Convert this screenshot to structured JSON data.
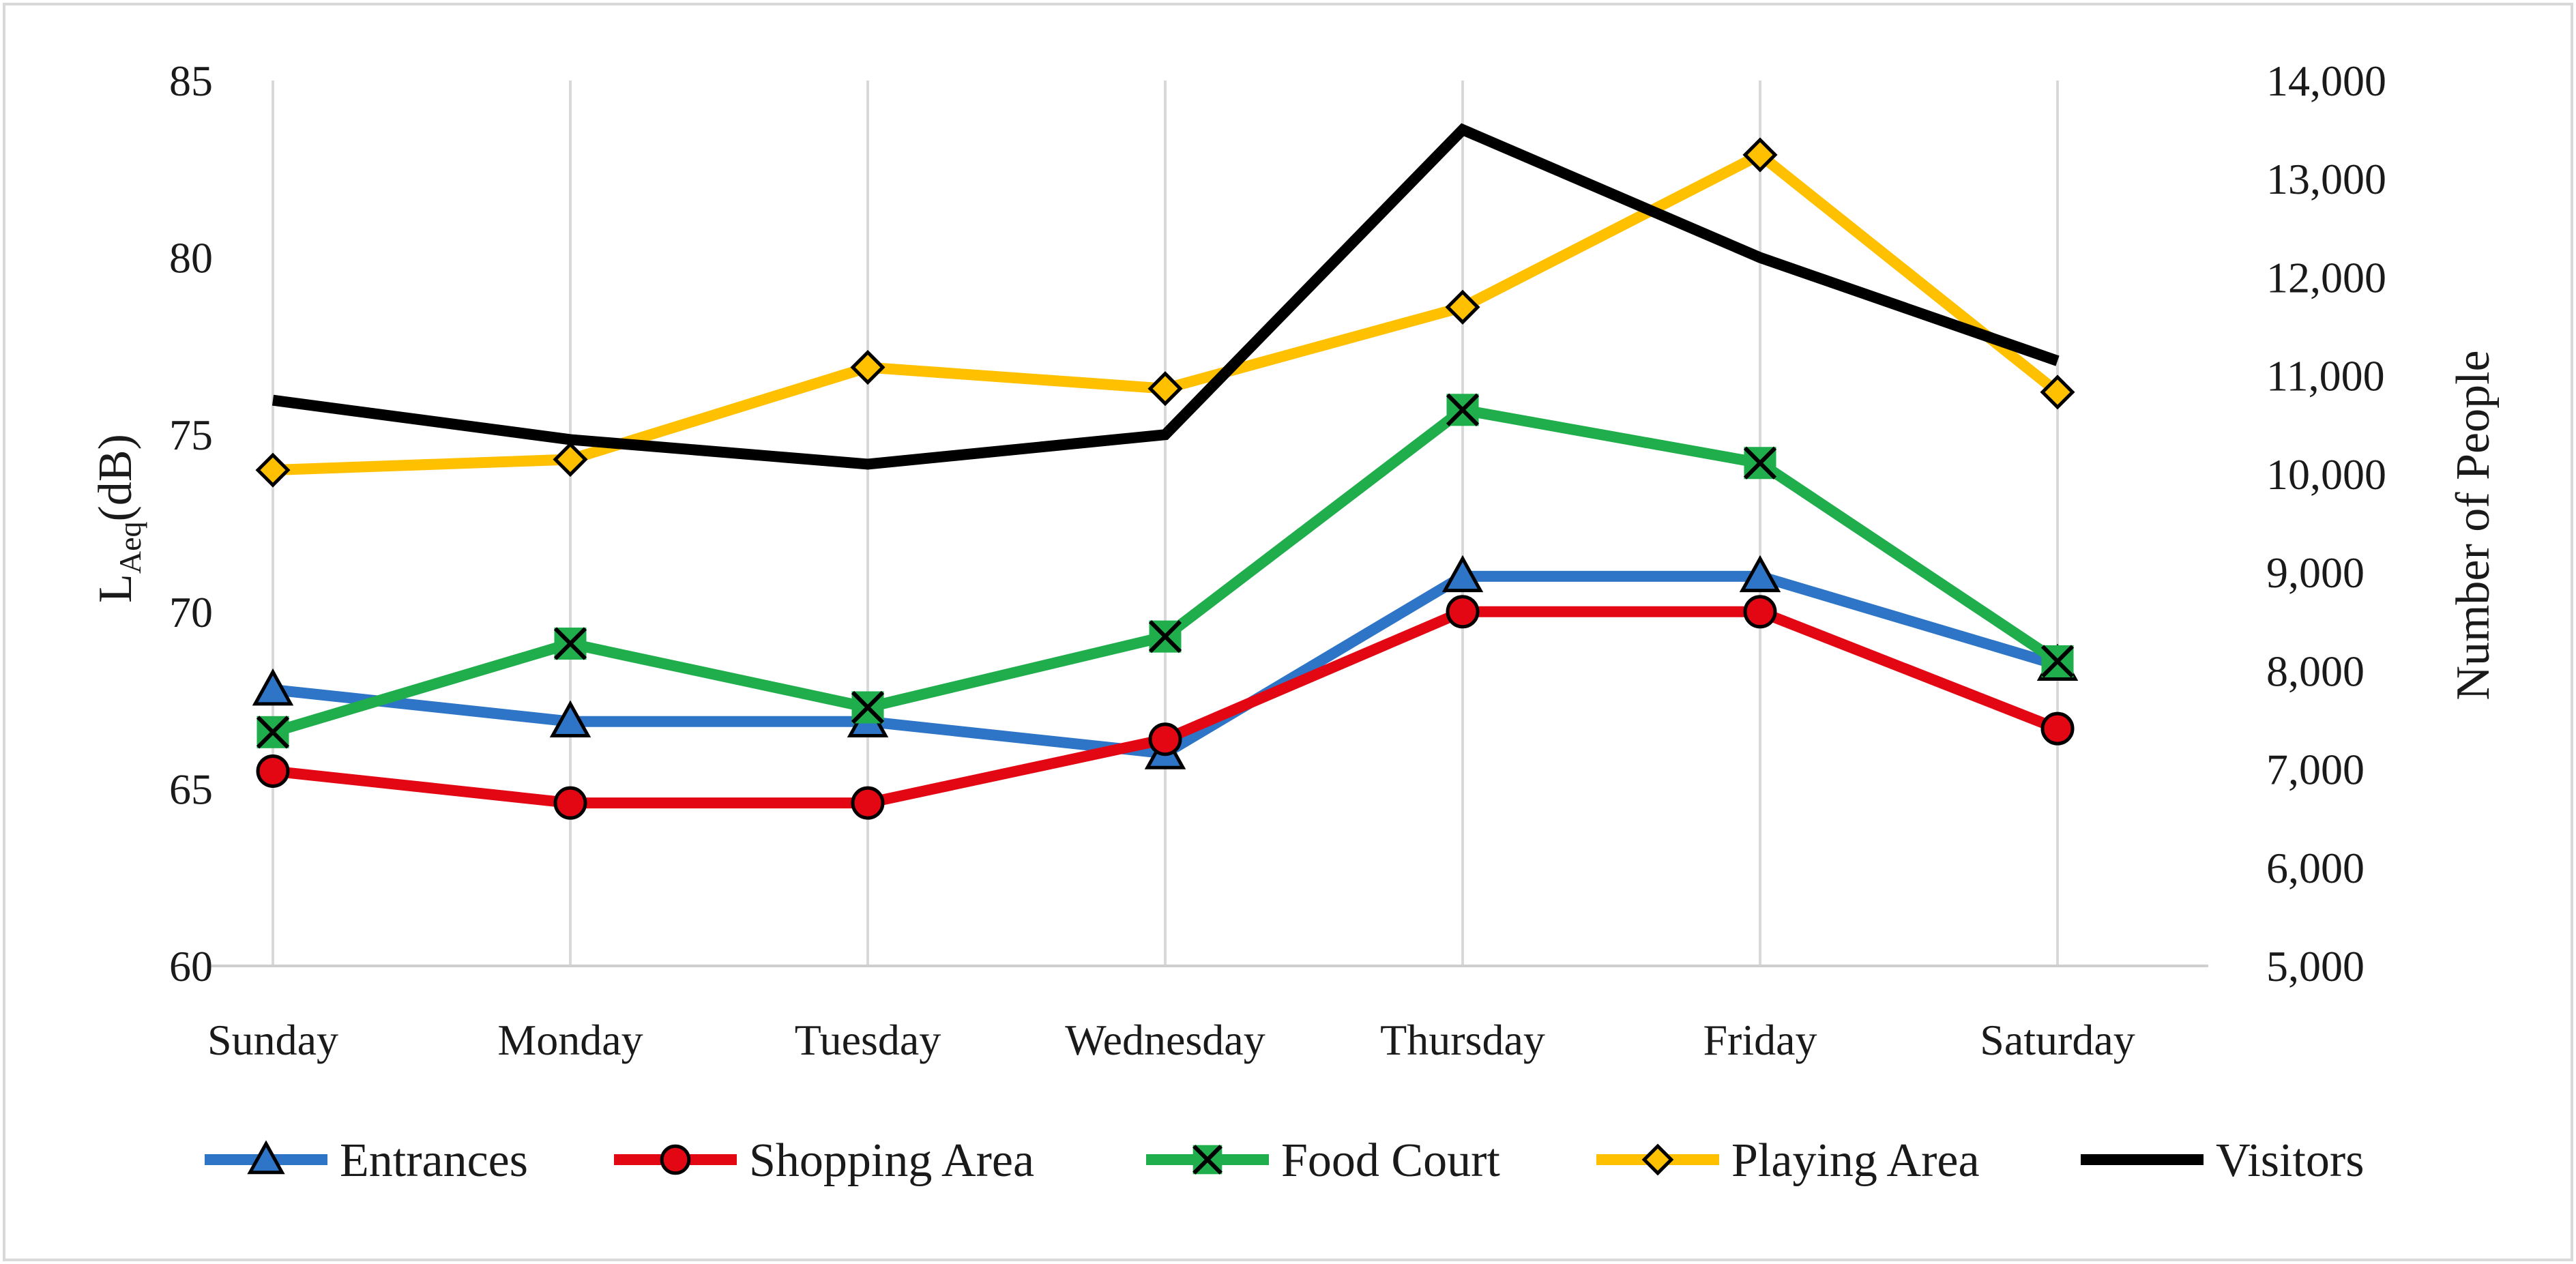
{
  "chart_data": {
    "type": "line",
    "categories": [
      "Sunday",
      "Monday",
      "Tuesday",
      "Wednesday",
      "Thursday",
      "Friday",
      "Saturday"
    ],
    "y_left": {
      "label_main": "L",
      "label_sub": "Aeq",
      "label_unit": "(dB)",
      "range": [
        60,
        85
      ],
      "ticks": [
        "60",
        "65",
        "70",
        "75",
        "80",
        "85"
      ]
    },
    "y_right": {
      "label": "Number of People",
      "range": [
        5000,
        14000
      ],
      "ticks": [
        "5,000",
        "6,000",
        "7,000",
        "8,000",
        "9,000",
        "10,000",
        "11,000",
        "12,000",
        "13,000",
        "14,000"
      ]
    },
    "grid": "vertical",
    "legend_position": "bottom",
    "series": [
      {
        "name": "Entrances",
        "axis": "left",
        "color": "#2e75c8",
        "marker": "triangle",
        "marker_fill": "#2e75c8",
        "values": [
          67.8,
          66.9,
          66.9,
          66.0,
          71.0,
          71.0,
          68.5
        ]
      },
      {
        "name": "Shopping Area",
        "axis": "left",
        "color": "#e30613",
        "marker": "circle",
        "marker_fill": "#e30613",
        "values": [
          65.5,
          64.6,
          64.6,
          66.4,
          70.0,
          70.0,
          66.7
        ]
      },
      {
        "name": "Food Court",
        "axis": "left",
        "color": "#1fae4b",
        "marker": "x-square",
        "marker_fill": "#1fae4b",
        "values": [
          66.6,
          69.1,
          67.3,
          69.3,
          75.7,
          74.2,
          68.6
        ]
      },
      {
        "name": "Playing Area",
        "axis": "left",
        "color": "#ffc000",
        "marker": "diamond",
        "marker_fill": "#ffc000",
        "values": [
          74.0,
          74.3,
          76.9,
          76.3,
          78.6,
          82.9,
          76.2
        ]
      },
      {
        "name": "Visitors",
        "axis": "right",
        "color": "#000000",
        "marker": "none",
        "marker_fill": "",
        "values": [
          10750,
          10350,
          10100,
          10400,
          13500,
          12200,
          11150
        ]
      }
    ]
  }
}
